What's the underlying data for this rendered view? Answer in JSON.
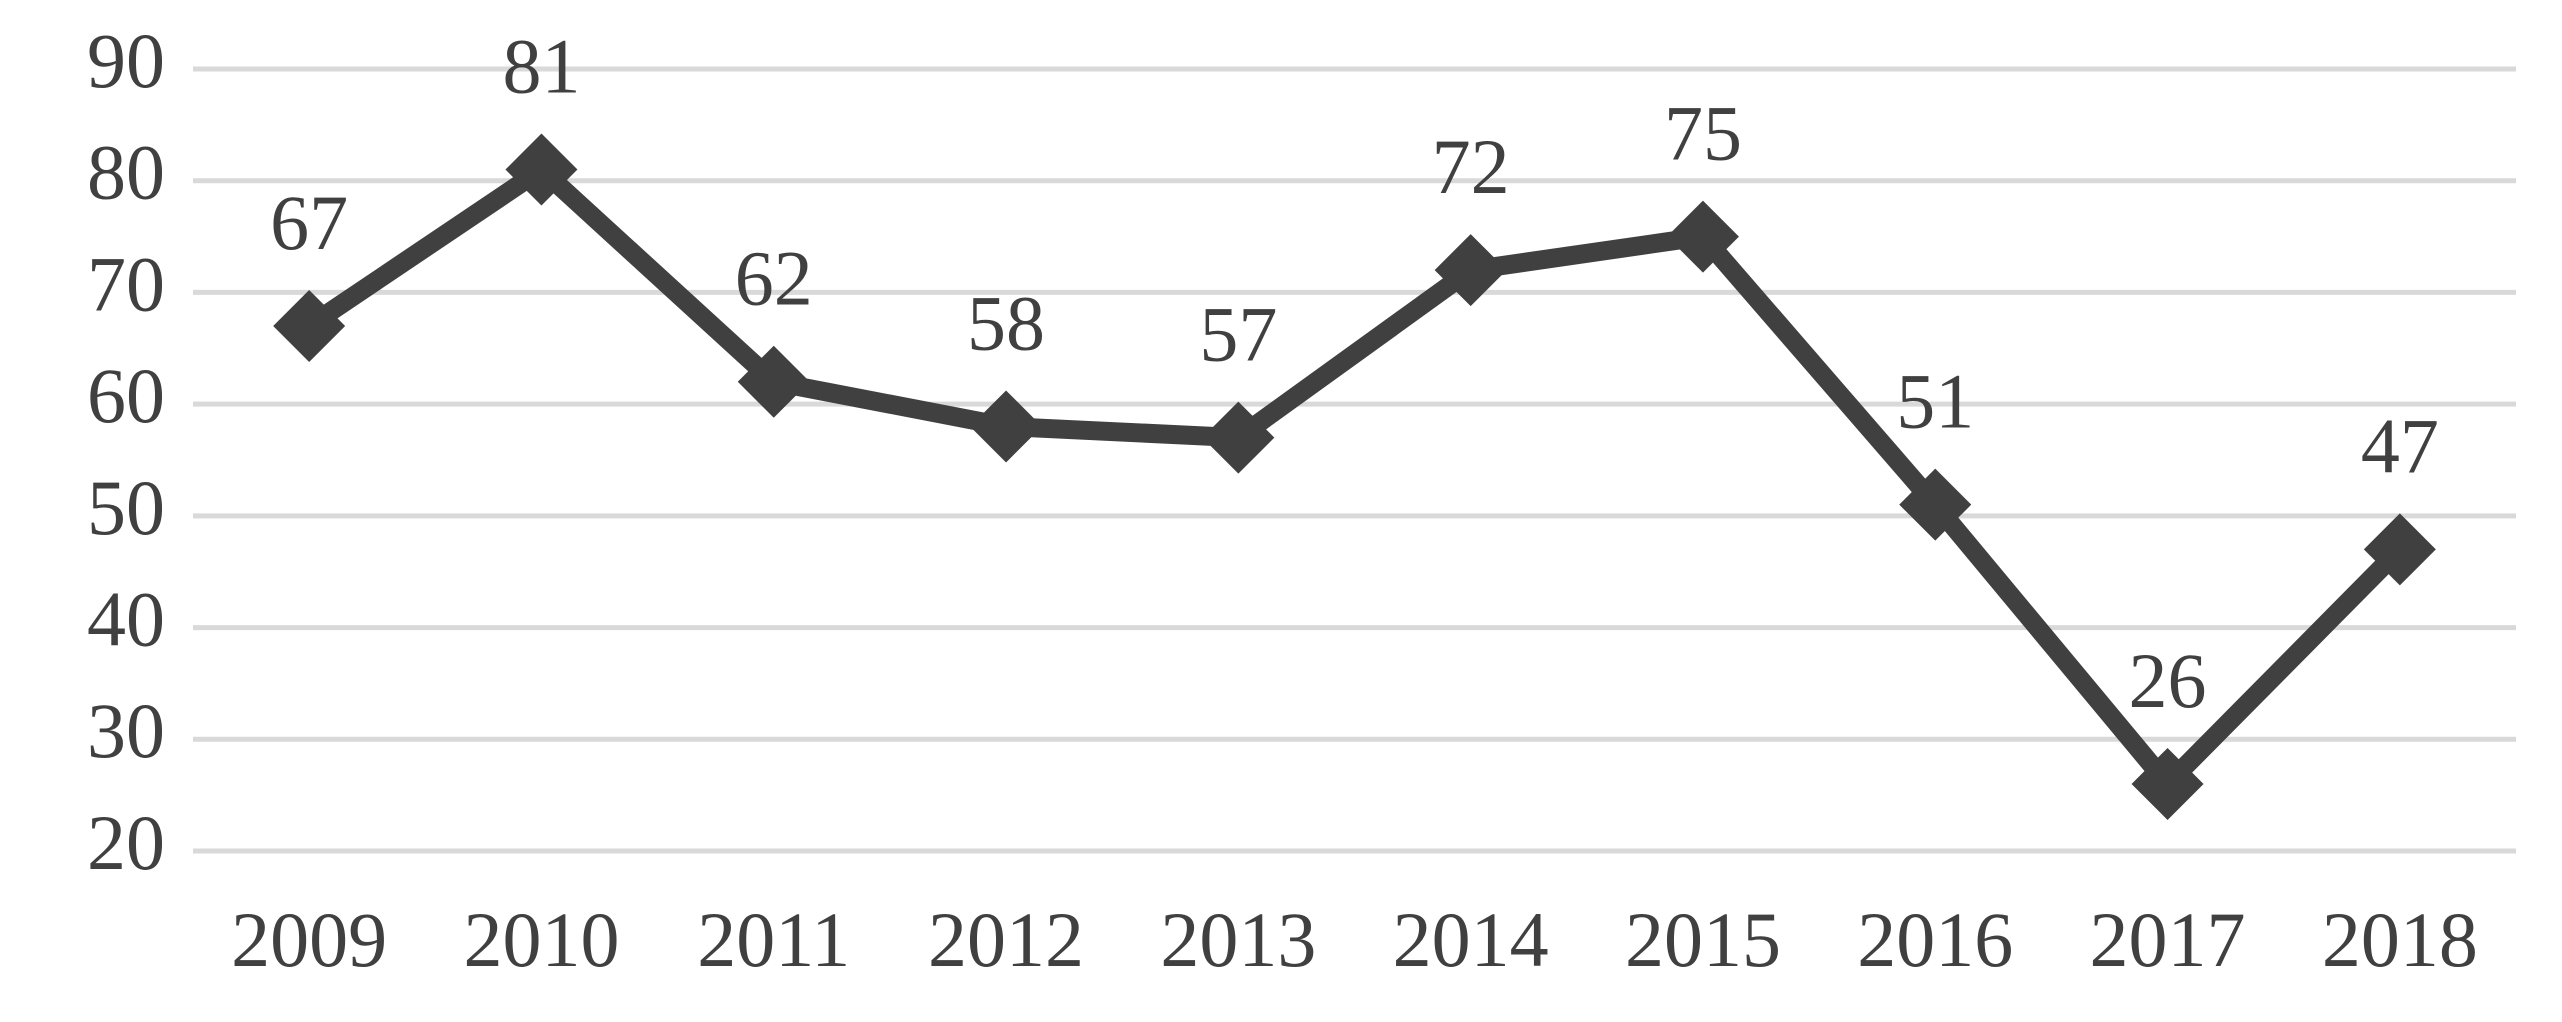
{
  "chart_data": {
    "type": "line",
    "categories": [
      "2009",
      "2010",
      "2011",
      "2012",
      "2013",
      "2014",
      "2015",
      "2016",
      "2017",
      "2018"
    ],
    "values": [
      67,
      81,
      62,
      58,
      57,
      72,
      75,
      51,
      26,
      47
    ],
    "color": "#404040",
    "ylim": [
      20,
      90
    ],
    "yticks": [
      20,
      30,
      40,
      50,
      60,
      70,
      80,
      90
    ],
    "grid": true
  }
}
